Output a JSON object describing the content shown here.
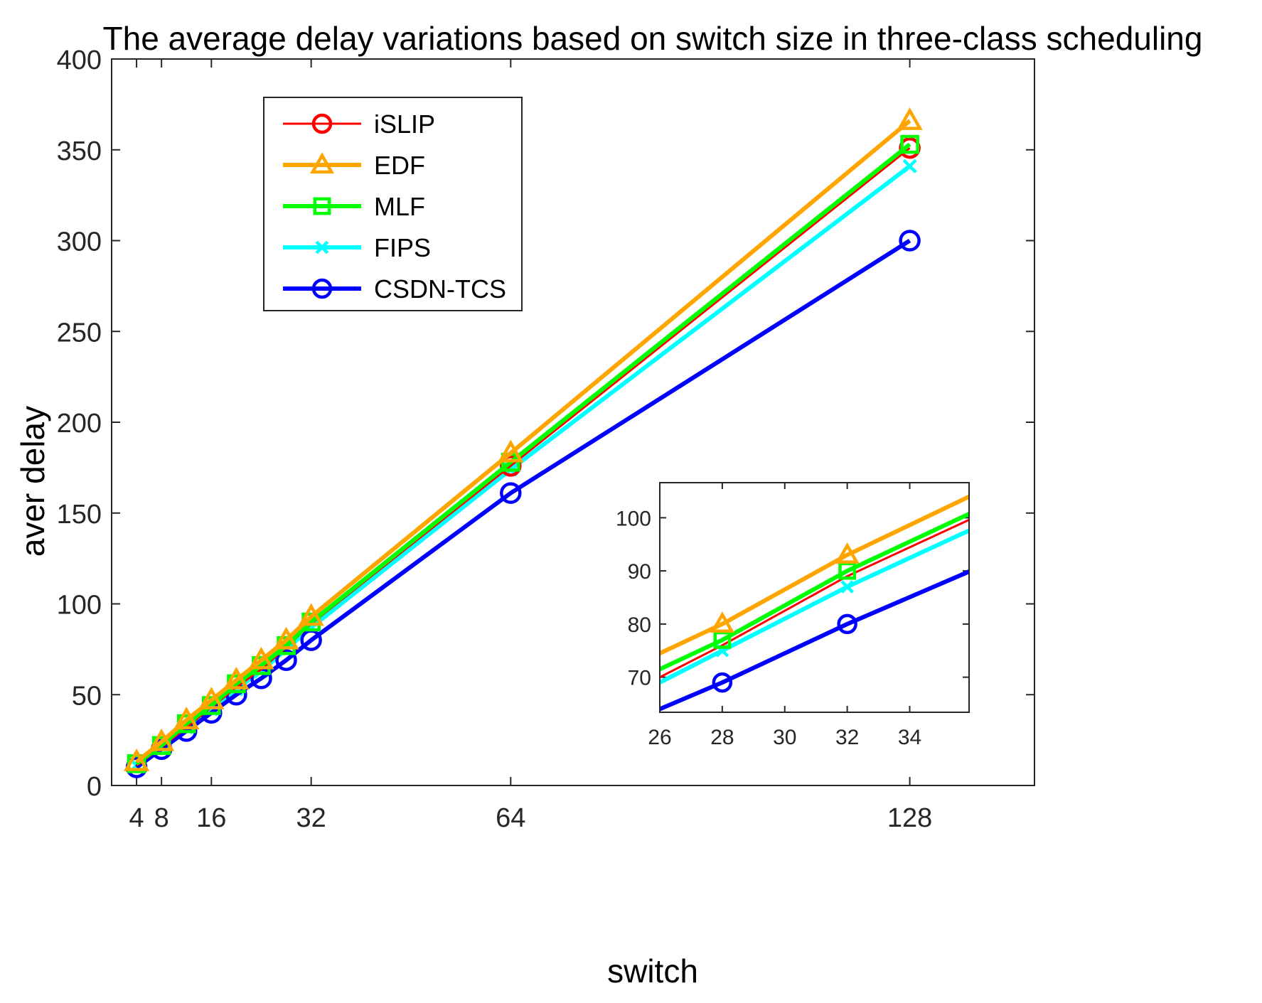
{
  "chart_data": {
    "type": "line",
    "title": "The average delay variations based on switch size in three-class scheduling",
    "xlabel": "switch",
    "ylabel": "aver delay",
    "xlim": [
      0,
      148
    ],
    "ylim": [
      0,
      400
    ],
    "xticks": [
      4,
      8,
      16,
      32,
      64,
      128
    ],
    "yticks": [
      0,
      50,
      100,
      150,
      200,
      250,
      300,
      350,
      400
    ],
    "x": [
      4,
      8,
      12,
      16,
      20,
      24,
      28,
      32,
      64,
      128
    ],
    "series": [
      {
        "name": "iSLIP",
        "color": "#ff0000",
        "marker": "circle",
        "marker_shown": [
          false,
          false,
          false,
          false,
          false,
          false,
          false,
          false,
          true,
          true
        ],
        "values": [
          11,
          21,
          32,
          43,
          54,
          64,
          76,
          89,
          176,
          351
        ]
      },
      {
        "name": "EDF",
        "color": "#ffa500",
        "marker": "triangle",
        "marker_shown": [
          true,
          true,
          true,
          true,
          true,
          true,
          true,
          true,
          true,
          true
        ],
        "values": [
          13,
          24,
          36,
          47,
          58,
          69,
          80,
          93,
          183,
          366
        ]
      },
      {
        "name": "MLF",
        "color": "#00ff00",
        "marker": "square",
        "marker_shown": [
          true,
          true,
          true,
          true,
          true,
          true,
          true,
          true,
          true,
          true
        ],
        "values": [
          12,
          22,
          34,
          44,
          56,
          66,
          77,
          90,
          178,
          353
        ]
      },
      {
        "name": "FIPS",
        "color": "#00ffff",
        "marker": "x",
        "marker_shown": [
          true,
          true,
          true,
          true,
          true,
          true,
          true,
          true,
          true,
          true
        ],
        "values": [
          11,
          21,
          32,
          42,
          53,
          63,
          75,
          87,
          174,
          341
        ]
      },
      {
        "name": "CSDN-TCS",
        "color": "#0000ff",
        "marker": "circle",
        "marker_shown": [
          true,
          true,
          true,
          true,
          true,
          true,
          true,
          true,
          true,
          true
        ],
        "values": [
          10,
          20,
          30,
          40,
          50,
          59,
          69,
          80,
          161,
          300
        ]
      }
    ],
    "legend": {
      "position": "top-left"
    },
    "inset": {
      "xlim": [
        26,
        35.9
      ],
      "ylim": [
        63.4,
        106.6
      ],
      "xticks": [
        26,
        28,
        30,
        32,
        34
      ],
      "yticks": [
        70,
        80,
        90,
        100
      ]
    }
  }
}
